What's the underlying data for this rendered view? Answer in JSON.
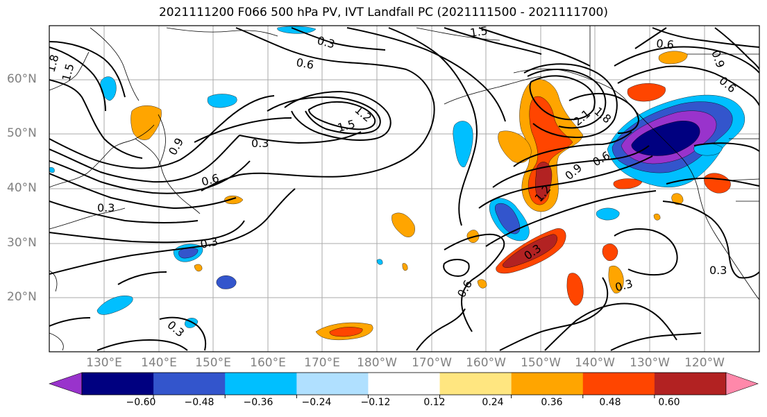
{
  "title": "2021111200 F066 500 hPa PV, IVT Landfall PC (2021111500 - 2021111700)",
  "lat_labels": [
    "60°N",
    "50°N",
    "40°N",
    "30°N",
    "20°N"
  ],
  "lon_labels": [
    "130°E",
    "140°E",
    "150°E",
    "160°E",
    "170°E",
    "180°W",
    "170°W",
    "160°W",
    "150°W",
    "140°W",
    "130°W",
    "120°W"
  ],
  "contour_labels": [
    "1.5",
    "0.3",
    "0.6",
    "1.2",
    "1.5",
    "1.8",
    "0.3",
    "0.9",
    "0.6",
    "0.3",
    "1.5",
    "0.6",
    "0.9",
    "0.6",
    "1.8",
    "2.1",
    "0.9",
    "0.6",
    "1.2",
    "0.3",
    "0.6",
    "0.3",
    "0.3",
    "0.3",
    "0.3"
  ],
  "colorbar": {
    "tick_labels": [
      "−0.60",
      "−0.48",
      "−0.36",
      "−0.24",
      "−0.12",
      "0.12",
      "0.24",
      "0.36",
      "0.48",
      "0.60"
    ],
    "colors": [
      "#9933cc",
      "#000080",
      "#3355cc",
      "#00bfff",
      "#b0e0ff",
      "#ffffff",
      "#ffe680",
      "#ffa500",
      "#ff4500",
      "#b22222",
      "#ff88aa"
    ]
  }
}
